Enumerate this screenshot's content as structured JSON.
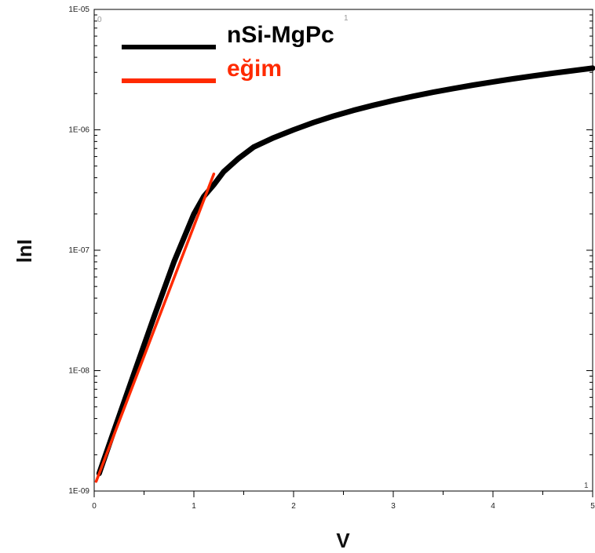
{
  "chart_data": {
    "type": "line",
    "xlabel": "V",
    "ylabel": "lnI",
    "xlim": [
      0,
      5
    ],
    "ylim": [
      1e-09,
      1e-05
    ],
    "y_scale": "log",
    "x_ticks": [
      "0",
      "1",
      "2",
      "3",
      "4",
      "5"
    ],
    "y_ticks": [
      "1E-09",
      "1E-08",
      "1E-07",
      "1E-06",
      "1E-05"
    ],
    "y_tick_values": [
      1e-09,
      1e-08,
      1e-07,
      1e-06,
      1e-05
    ],
    "legend_position": "top-left",
    "series": [
      {
        "name": "nSi-MgPc",
        "color": "#000000",
        "x": [
          0.05,
          0.2,
          0.4,
          0.6,
          0.8,
          1.0,
          1.1,
          1.2,
          1.3,
          1.45,
          1.6,
          1.8,
          2.0,
          2.2,
          2.4,
          2.6,
          2.8,
          3.0,
          3.2,
          3.4,
          3.6,
          3.8,
          4.0,
          4.2,
          4.4,
          4.6,
          4.8,
          5.0
        ],
        "y": [
          1.4e-09,
          3.2e-09,
          9.5e-09,
          2.8e-08,
          8e-08,
          2e-07,
          2.8e-07,
          3.5e-07,
          4.5e-07,
          5.8e-07,
          7.2e-07,
          8.6e-07,
          1e-06,
          1.15e-06,
          1.3e-06,
          1.45e-06,
          1.6e-06,
          1.75e-06,
          1.9e-06,
          2.05e-06,
          2.2e-06,
          2.35e-06,
          2.5e-06,
          2.65e-06,
          2.8e-06,
          2.95e-06,
          3.1e-06,
          3.25e-06
        ]
      },
      {
        "name": "eğim",
        "color": "#ff2a00",
        "x": [
          0.02,
          1.2
        ],
        "y": [
          1.2e-09,
          4.3e-07
        ]
      }
    ]
  },
  "faint_top_labels": [
    "0",
    "1"
  ],
  "right_axis_bottom_label": "1"
}
